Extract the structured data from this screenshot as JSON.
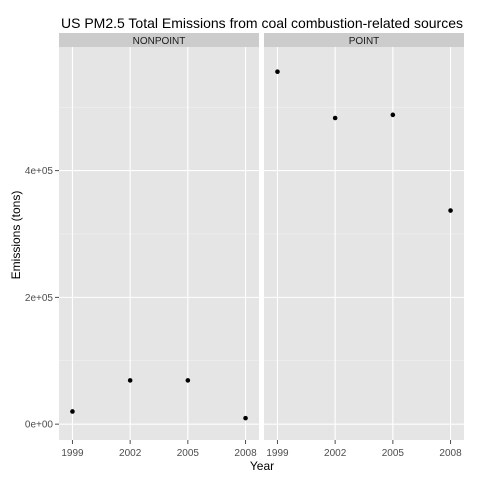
{
  "chart_data": {
    "type": "scatter",
    "title": "US PM2.5 Total Emissions from coal combustion-related sources",
    "xlabel": "Year",
    "ylabel": "Emissions (tons)",
    "x_ticks": [
      "1999",
      "2002",
      "2005",
      "2008"
    ],
    "y_ticks": [
      {
        "value": 0,
        "label": "0e+00"
      },
      {
        "value": 200000,
        "label": "2e+05"
      },
      {
        "value": 400000,
        "label": "4e+05"
      }
    ],
    "xlim": [
      1998.3,
      2008.7
    ],
    "ylim": [
      -25000,
      595000
    ],
    "grid": true,
    "facets": [
      {
        "label": "NONPOINT",
        "x": [
          1999,
          2002,
          2005,
          2008
        ],
        "y": [
          20000,
          69000,
          69000,
          9500
        ]
      },
      {
        "label": "POINT",
        "x": [
          1999,
          2002,
          2005,
          2008
        ],
        "y": [
          556000,
          483000,
          488000,
          337000
        ]
      }
    ],
    "colors": {
      "panel_bg": "#e5e5e5",
      "strip_bg": "#cccccc",
      "grid": "#ffffff",
      "point": "#000000",
      "tick": "#4d4d4d"
    }
  }
}
